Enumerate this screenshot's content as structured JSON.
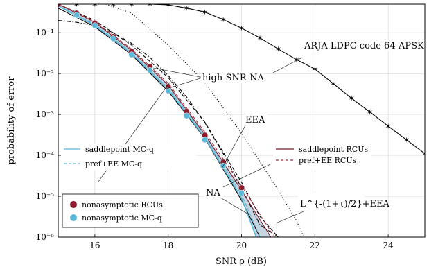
{
  "chart_data": {
    "type": "line",
    "xlabel": "SNR ρ (dB)",
    "ylabel": "probability of error",
    "xlim": [
      15,
      25
    ],
    "ylim": [
      1e-06,
      0.5
    ],
    "yscale": "log",
    "xticks": [
      16,
      18,
      20,
      22,
      24
    ],
    "xtick_labels": [
      "16",
      "18",
      "20",
      "22",
      "24"
    ],
    "yticks": [
      1e-06,
      1e-05,
      0.0001,
      0.001,
      0.01,
      0.1
    ],
    "ytick_labels": [
      "10⁻⁶",
      "10⁻⁵",
      "10⁻⁴",
      "10⁻³",
      "10⁻²",
      "10⁻¹"
    ],
    "grid": true,
    "colors": {
      "saddle_mc": "#5bb8d8",
      "band": "#b4c8d6",
      "rcu_dark": "#7a1a2a",
      "rcu_marker": "#8b1e2e",
      "mc_marker": "#5bb8d8",
      "black": "#000000"
    },
    "series": [
      {
        "key": "arja",
        "name": "ARJA LDPC code 64-APSK",
        "style": "solid-star",
        "color": "#000000",
        "x": [
          15.0,
          15.5,
          16.0,
          16.5,
          17.0,
          17.5,
          18.0,
          18.5,
          19.0,
          19.5,
          20.0,
          20.5,
          21.0,
          21.5,
          22.0,
          22.5,
          23.0,
          23.5,
          24.0,
          24.5,
          25.0
        ],
        "y": [
          0.5,
          0.5,
          0.5,
          0.5,
          0.5,
          0.5,
          0.48,
          0.4,
          0.32,
          0.21,
          0.13,
          0.075,
          0.04,
          0.022,
          0.013,
          0.0057,
          0.0025,
          0.00115,
          0.00052,
          0.00024,
          0.00011
        ]
      },
      {
        "key": "ana",
        "name": "",
        "style": "dotted",
        "color": "#000000",
        "x": [
          16.3,
          17.0,
          18.0,
          19.0,
          20.0,
          20.5,
          21.0,
          21.5,
          21.7
        ],
        "y": [
          0.5,
          0.3,
          0.05,
          0.006,
          0.00035,
          7e-05,
          1.4e-05,
          2.5e-06,
          1e-06
        ]
      },
      {
        "key": "eea",
        "name": "",
        "style": "dashdot",
        "color": "#000000",
        "x": [
          15.0,
          15.5,
          16.0,
          16.5,
          17.0,
          17.5,
          18.0,
          18.5,
          19.0,
          19.5,
          20.0,
          20.5,
          21.0
        ],
        "y": [
          0.2,
          0.18,
          0.15,
          0.1,
          0.055,
          0.025,
          0.009,
          0.0027,
          0.00063,
          0.00011,
          1.6e-05,
          2e-06,
          1e-06
        ]
      },
      {
        "key": "l_eea",
        "name": "",
        "style": "dash",
        "color": "#000000",
        "x": [
          15.0,
          16.0,
          17.0,
          18.0,
          19.0,
          20.0,
          20.5,
          21.0
        ],
        "y": [
          0.5,
          0.2,
          0.05,
          0.008,
          0.00065,
          2.2e-05,
          3.2e-06,
          1e-06
        ]
      },
      {
        "key": "na",
        "name": "NA",
        "style": "solid",
        "color": "#000000",
        "x": [
          15.0,
          16.0,
          17.0,
          18.0,
          19.0,
          20.0,
          20.5
        ],
        "y": [
          0.4,
          0.14,
          0.029,
          0.0037,
          0.00026,
          8e-06,
          1e-06
        ]
      },
      {
        "key": "rcu_saddle",
        "name": "saddlepoint RCUs",
        "style": "solid",
        "color": "#7a1a2a",
        "x": [
          15.0,
          16.0,
          17.0,
          18.0,
          19.0,
          20.0,
          20.8
        ],
        "y": [
          0.5,
          0.18,
          0.037,
          0.0052,
          0.00032,
          1.4e-05,
          1e-06
        ]
      },
      {
        "key": "rcu_ee",
        "name": "pref+EE RCUs",
        "style": "dash",
        "color": "#9e3040",
        "x": [
          15.0,
          16.0,
          17.0,
          18.0,
          19.0,
          20.0,
          20.9
        ],
        "y": [
          0.5,
          0.19,
          0.04,
          0.0058,
          0.00037,
          1.8e-05,
          1e-06
        ]
      },
      {
        "key": "mc_saddle",
        "name": "saddlepoint MC-q",
        "style": "solid",
        "color": "#5bb8d8",
        "x": [
          15.0,
          16.0,
          17.0,
          18.0,
          19.0,
          20.0,
          20.4
        ],
        "y": [
          0.45,
          0.15,
          0.031,
          0.0041,
          0.00027,
          9e-06,
          1e-06
        ]
      },
      {
        "key": "mc_ee",
        "name": "pref+EE MC-q",
        "style": "dash",
        "color": "#5bb8d8",
        "x": [
          15.0,
          16.0,
          17.0,
          18.0,
          19.0,
          20.0,
          20.5
        ],
        "y": [
          0.46,
          0.16,
          0.033,
          0.0045,
          0.0003,
          1.1e-05,
          1e-06
        ]
      }
    ],
    "markers": [
      {
        "key": "rcu_pts",
        "name": "nonasymptotic RCUs",
        "color": "#8b1e2e",
        "x": [
          15.0,
          15.5,
          16.0,
          16.5,
          17.0,
          17.5,
          18.0,
          18.5,
          19.0,
          19.5,
          20.0
        ],
        "y": [
          0.5,
          0.3,
          0.17,
          0.08,
          0.035,
          0.015,
          0.0048,
          0.0012,
          0.00031,
          6.8e-05,
          1.6e-05
        ]
      },
      {
        "key": "mc_pts",
        "name": "nonasymptotic MC-q",
        "color": "#5bb8d8",
        "x": [
          15.5,
          16.0,
          16.5,
          17.0,
          17.5,
          18.0,
          18.5,
          19.0,
          19.5,
          20.0
        ],
        "y": [
          0.27,
          0.15,
          0.072,
          0.029,
          0.012,
          0.0038,
          0.00093,
          0.00024,
          5.5e-05,
          1.2e-05
        ]
      }
    ],
    "band": {
      "x": [
        15.0,
        16.0,
        17.0,
        18.0,
        19.0,
        20.0,
        20.4,
        20.8
      ],
      "lower": [
        0.44,
        0.15,
        0.03,
        0.0039,
        0.00026,
        8.5e-06,
        1e-06,
        1e-06
      ],
      "upper": [
        0.5,
        0.185,
        0.038,
        0.0055,
        0.00035,
        1.6e-05,
        3.5e-06,
        1e-06
      ]
    },
    "annotations": {
      "arja": "ARJA LDPC code 64-APSK",
      "high_snr_na": "high-SNR-NA",
      "eea": "EEA",
      "na": "NA",
      "l_eea": "L^{-(1+τ)/2}+EEA"
    },
    "legend": {
      "left_top": "saddlepoint MC-q",
      "left_bottom": "pref+EE MC-q",
      "right_top": "saddlepoint RCUs",
      "right_bottom": "pref+EE RCUs",
      "box_top": "nonasymptotic RCUs",
      "box_bottom": "nonasymptotic MC-q"
    }
  }
}
